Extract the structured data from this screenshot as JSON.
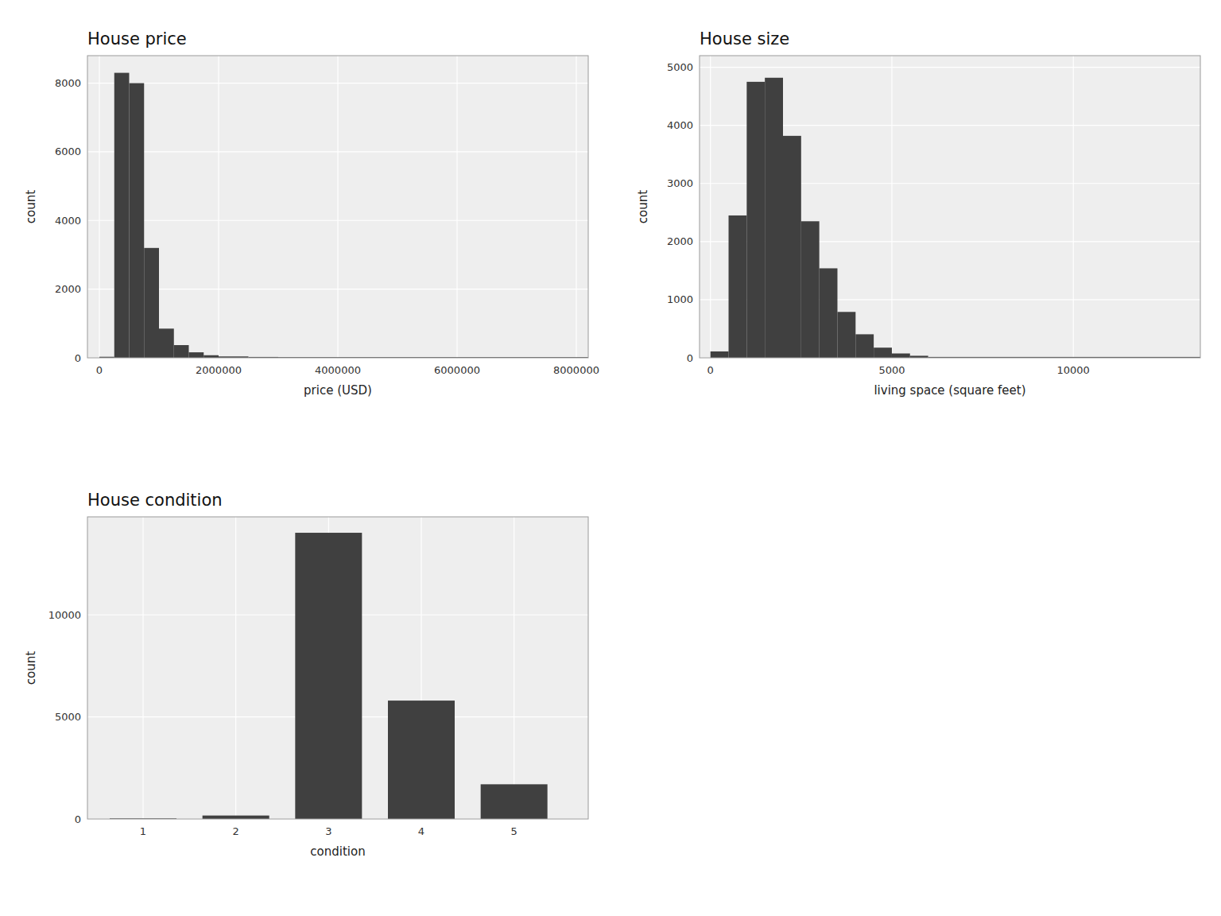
{
  "chart_data": [
    {
      "type": "histogram",
      "title": "House price",
      "x_label": "price (USD)",
      "y_label": "count",
      "bins": [
        0,
        250000,
        500000,
        750000,
        1000000,
        1250000,
        1500000,
        1750000,
        2000000,
        2500000,
        3000000,
        8200000
      ],
      "values": [
        30,
        8300,
        8000,
        3200,
        850,
        370,
        160,
        75,
        40,
        25,
        20
      ],
      "color": "#404040",
      "xlim": [
        -200000,
        8200000
      ],
      "xticks": [
        0,
        2000000,
        4000000,
        6000000,
        8000000
      ],
      "ylim": [
        0,
        8800
      ],
      "yticks": [
        0,
        2000,
        4000,
        6000,
        8000
      ],
      "grid": true
    },
    {
      "type": "histogram",
      "title": "House size",
      "x_label": "living space (square feet)",
      "y_label": "count",
      "bins": [
        0,
        500,
        1000,
        1500,
        2000,
        2500,
        3000,
        3500,
        4000,
        4500,
        5000,
        5500,
        6000,
        13500
      ],
      "values": [
        110,
        2450,
        4750,
        4820,
        3820,
        2350,
        1540,
        790,
        405,
        175,
        75,
        35,
        15
      ],
      "color": "#404040",
      "xlim": [
        -300,
        13500
      ],
      "xticks": [
        0,
        5000,
        10000
      ],
      "ylim": [
        0,
        5200
      ],
      "yticks": [
        0,
        1000,
        2000,
        3000,
        4000,
        5000
      ],
      "grid": true
    },
    {
      "type": "bar",
      "title": "House condition",
      "x_label": "condition",
      "y_label": "count",
      "x": [
        1,
        2,
        3,
        4,
        5
      ],
      "values": [
        30,
        170,
        14020,
        5800,
        1700
      ],
      "color": "#404040",
      "xlim": [
        0.4,
        5.8
      ],
      "xticks": [
        1,
        2,
        3,
        4,
        5
      ],
      "ylim": [
        0,
        14800
      ],
      "yticks": [
        0,
        5000,
        10000
      ],
      "grid": true
    }
  ]
}
